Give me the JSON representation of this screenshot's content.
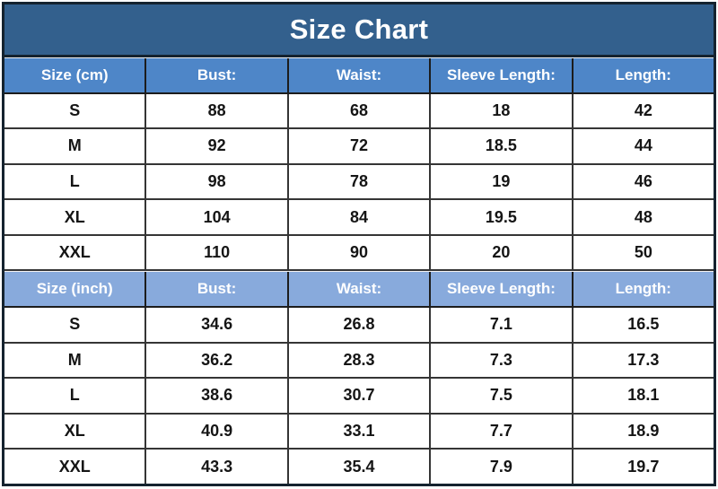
{
  "title": "Size Chart",
  "colors": {
    "title_bg": "#33608d",
    "header_cm_bg": "#4e86c8",
    "header_inch_bg": "#88aadc",
    "header_text": "#ffffff",
    "data_text": "#151515",
    "grid_border": "#353535",
    "outer_border": "#15232f",
    "page_bg": "#ffffff"
  },
  "chart_data": {
    "type": "table",
    "title": "Size Chart",
    "sections": [
      {
        "unit": "cm",
        "columns": [
          "Size (cm)",
          "Bust:",
          "Waist:",
          "Sleeve Length:",
          "Length:"
        ],
        "rows": [
          [
            "S",
            "88",
            "68",
            "18",
            "42"
          ],
          [
            "M",
            "92",
            "72",
            "18.5",
            "44"
          ],
          [
            "L",
            "98",
            "78",
            "19",
            "46"
          ],
          [
            "XL",
            "104",
            "84",
            "19.5",
            "48"
          ],
          [
            "XXL",
            "110",
            "90",
            "20",
            "50"
          ]
        ]
      },
      {
        "unit": "inch",
        "columns": [
          "Size (inch)",
          "Bust:",
          "Waist:",
          "Sleeve Length:",
          "Length:"
        ],
        "rows": [
          [
            "S",
            "34.6",
            "26.8",
            "7.1",
            "16.5"
          ],
          [
            "M",
            "36.2",
            "28.3",
            "7.3",
            "17.3"
          ],
          [
            "L",
            "38.6",
            "30.7",
            "7.5",
            "18.1"
          ],
          [
            "XL",
            "40.9",
            "33.1",
            "7.7",
            "18.9"
          ],
          [
            "XXL",
            "43.3",
            "35.4",
            "7.9",
            "19.7"
          ]
        ]
      }
    ]
  }
}
